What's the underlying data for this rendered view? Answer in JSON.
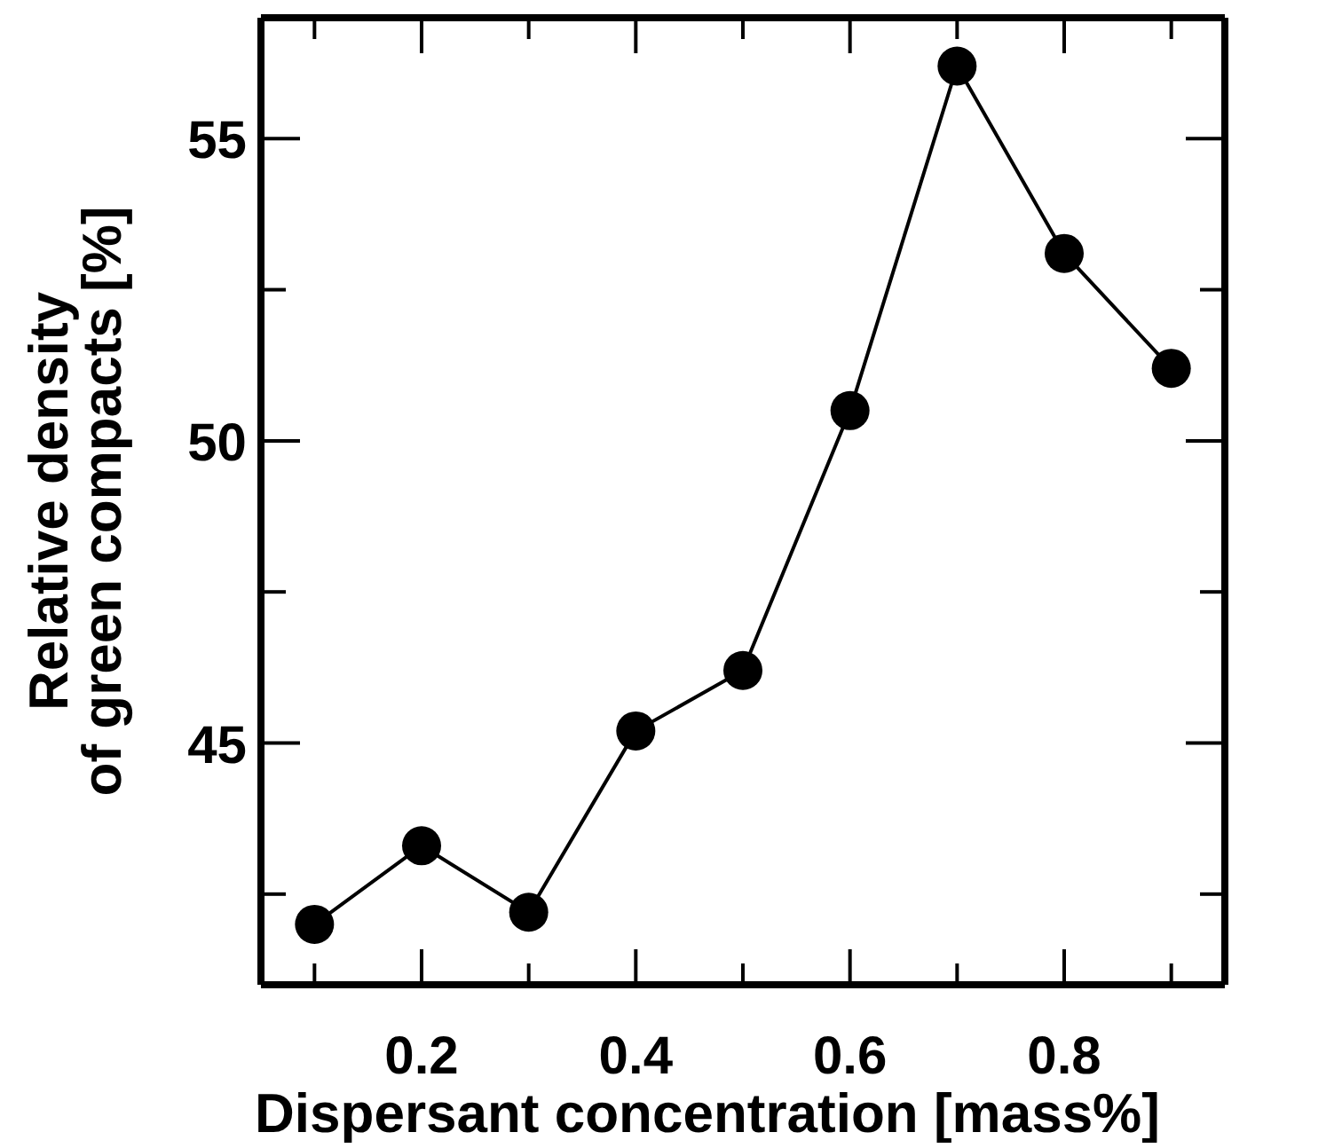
{
  "chart_data": {
    "type": "line",
    "xlabel": "Dispersant concentration [mass%]",
    "ylabel": "Relative density\nof green compacts [%]",
    "x": [
      0.1,
      0.2,
      0.3,
      0.4,
      0.5,
      0.6,
      0.7,
      0.8,
      0.9
    ],
    "series": [
      {
        "color": "#000000",
        "values": [
          42.0,
          43.3,
          42.2,
          45.2,
          46.2,
          50.5,
          56.2,
          53.1,
          51.2
        ]
      }
    ],
    "xlim": [
      0.05,
      0.95
    ],
    "xticks": [
      {
        "value": 0.1,
        "label": null
      },
      0.2,
      {
        "value": 0.3,
        "label": null
      },
      0.4,
      {
        "value": 0.5,
        "label": null
      },
      0.6,
      {
        "value": 0.7,
        "label": null
      },
      0.8,
      {
        "value": 0.9,
        "label": null
      }
    ],
    "ylim": [
      41,
      57
    ],
    "yticks": [
      {
        "value": 42.5,
        "label": null
      },
      45,
      {
        "value": 47.5,
        "label": null
      },
      50,
      {
        "value": 52.5,
        "label": null
      },
      55
    ],
    "marker": "circle",
    "line_style": "solid"
  }
}
